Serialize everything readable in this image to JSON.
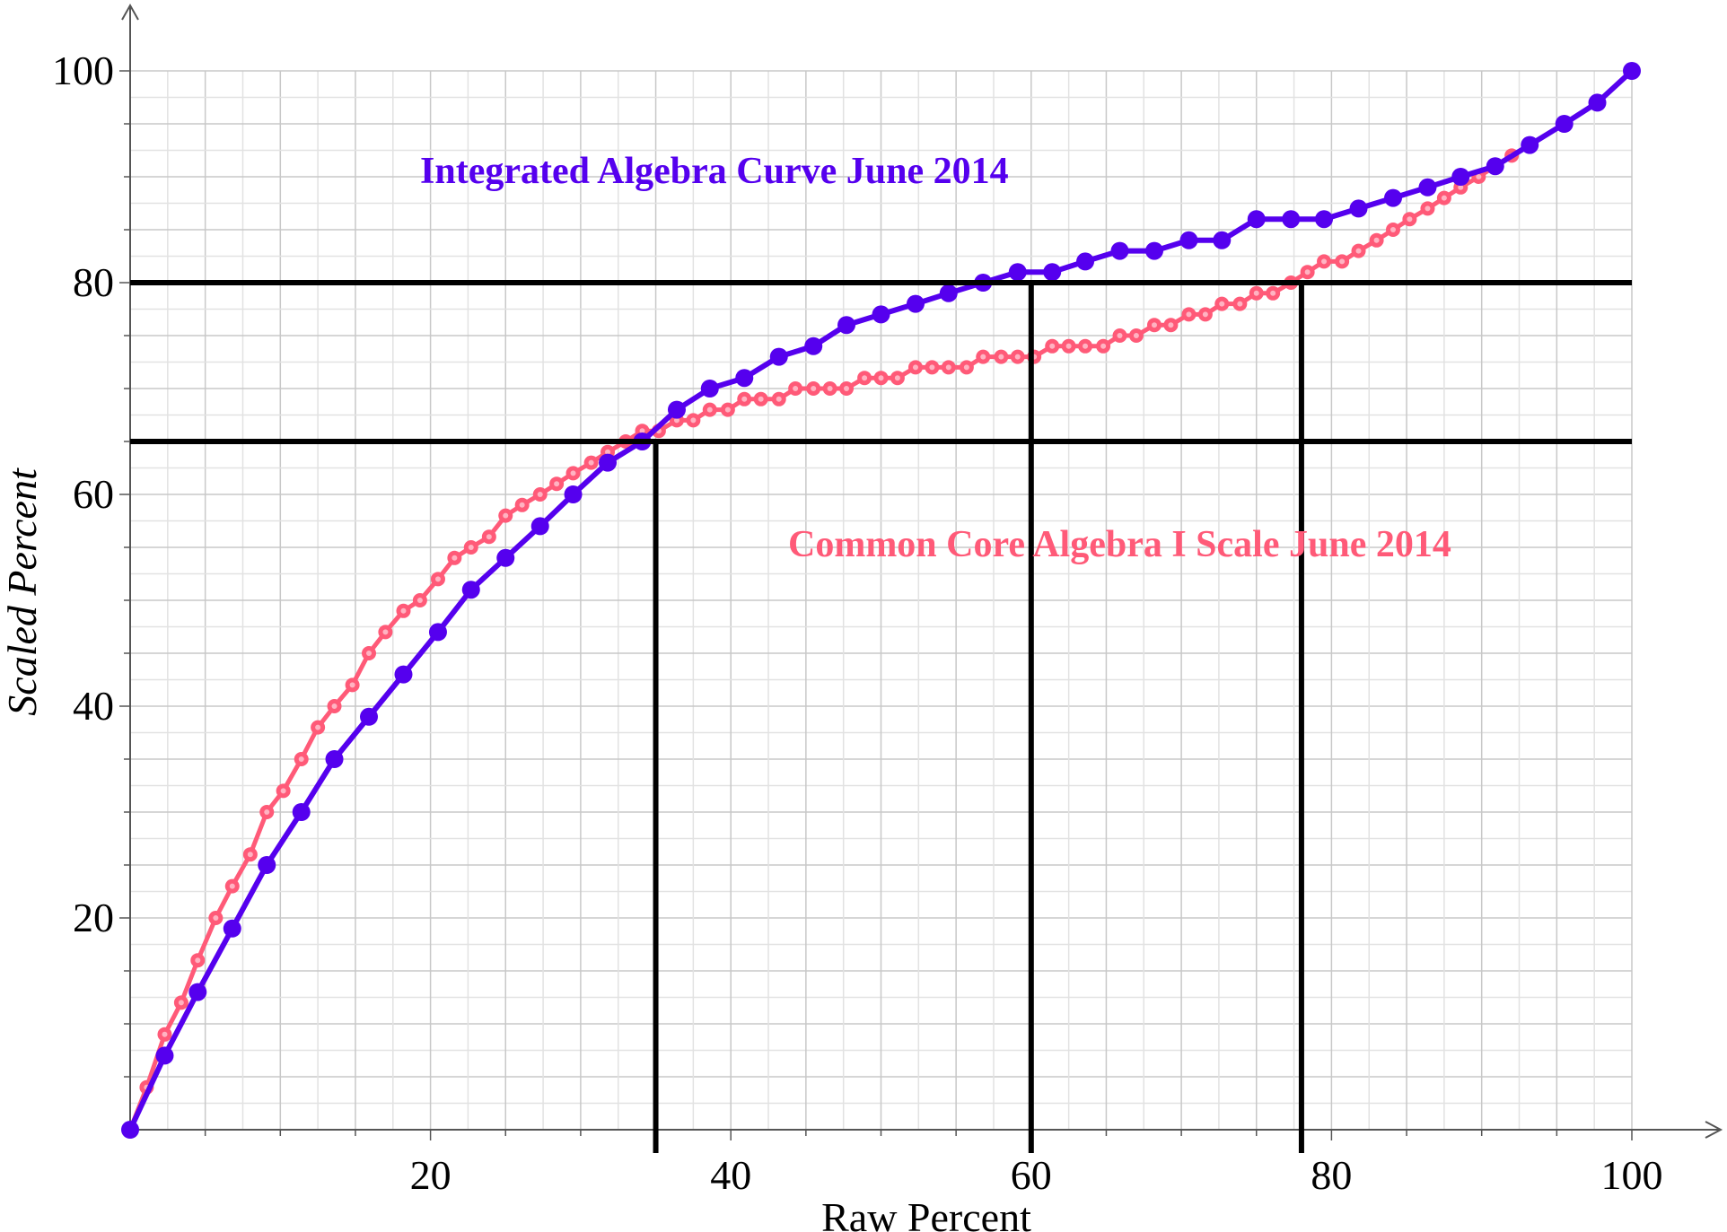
{
  "chart_data": {
    "type": "line",
    "xlabel": "Raw Percent",
    "ylabel": "Scaled Percent",
    "xlim": [
      0,
      100
    ],
    "ylim": [
      0,
      100
    ],
    "xticks": [
      20,
      40,
      60,
      80,
      100
    ],
    "yticks": [
      20,
      40,
      60,
      80,
      100
    ],
    "grid": true,
    "series": [
      {
        "key": "integrated",
        "color": "#5500ee",
        "x": [
          0,
          2.3,
          4.5,
          6.8,
          9.1,
          11.4,
          13.6,
          15.9,
          18.2,
          20.5,
          22.7,
          25.0,
          27.3,
          29.5,
          31.8,
          34.1,
          36.4,
          38.6,
          40.9,
          43.2,
          45.5,
          47.7,
          50.0,
          52.3,
          54.5,
          56.8,
          59.1,
          61.4,
          63.6,
          65.9,
          68.2,
          70.5,
          72.7,
          75.0,
          77.3,
          79.5,
          81.8,
          84.1,
          86.4,
          88.6,
          90.9,
          93.2,
          95.5,
          97.7,
          100
        ],
        "values": [
          0,
          7,
          13,
          19,
          25,
          30,
          35,
          39,
          43,
          47,
          51,
          54,
          57,
          60,
          63,
          65,
          68,
          70,
          71,
          73,
          74,
          76,
          77,
          78,
          79,
          80,
          81,
          81,
          82,
          83,
          83,
          84,
          84,
          86,
          86,
          86,
          87,
          88,
          89,
          90,
          91,
          93,
          95,
          97,
          100
        ]
      },
      {
        "key": "common_core",
        "color": "#ff5a78",
        "x": [
          0,
          1.1,
          2.3,
          3.4,
          4.5,
          5.7,
          6.8,
          8.0,
          9.1,
          10.2,
          11.4,
          12.5,
          13.6,
          14.8,
          15.9,
          17.0,
          18.2,
          19.3,
          20.5,
          21.6,
          22.7,
          23.9,
          25.0,
          26.1,
          27.3,
          28.4,
          29.5,
          30.7,
          31.8,
          33.0,
          34.1,
          35.2,
          36.4,
          37.5,
          38.6,
          39.8,
          40.9,
          42.0,
          43.2,
          44.3,
          45.5,
          46.6,
          47.7,
          48.9,
          50.0,
          51.1,
          52.3,
          53.4,
          54.5,
          55.7,
          56.8,
          58.0,
          59.1,
          60.2,
          61.4,
          62.5,
          63.6,
          64.8,
          65.9,
          67.0,
          68.2,
          69.3,
          70.5,
          71.6,
          72.7,
          73.9,
          75.0,
          76.1,
          77.3,
          78.4,
          79.5,
          80.7,
          81.8,
          83.0,
          84.1,
          85.2,
          86.4,
          87.5,
          88.6,
          89.8,
          90.9,
          92.0,
          93.2
        ],
        "values": [
          0,
          4,
          9,
          12,
          16,
          20,
          23,
          26,
          30,
          32,
          35,
          38,
          40,
          42,
          45,
          47,
          49,
          50,
          52,
          54,
          55,
          56,
          58,
          59,
          60,
          61,
          62,
          63,
          64,
          65,
          66,
          66,
          67,
          67,
          68,
          68,
          69,
          69,
          69,
          70,
          70,
          70,
          70,
          71,
          71,
          71,
          72,
          72,
          72,
          72,
          73,
          73,
          73,
          73,
          74,
          74,
          74,
          74,
          75,
          75,
          76,
          76,
          77,
          77,
          78,
          78,
          79,
          79,
          80,
          81,
          82,
          82,
          83,
          84,
          85,
          86,
          87,
          88,
          89,
          90,
          91,
          92,
          93
        ]
      }
    ],
    "reference_lines": {
      "horizontal": [
        65,
        80
      ],
      "vertical": [
        35,
        60,
        78
      ]
    },
    "annotations": [
      {
        "key": "integrated",
        "text": "Integrated Algebra Curve June 2014",
        "color": "#5500ee"
      },
      {
        "key": "common_core",
        "text": "Common Core Algebra I Scale June 2014",
        "color": "#ff5a78"
      }
    ]
  }
}
